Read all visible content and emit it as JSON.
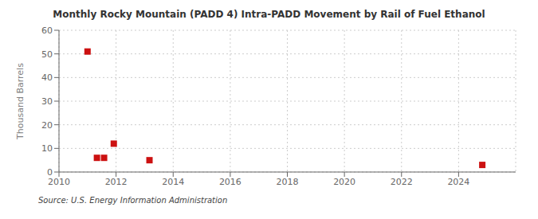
{
  "chart_data": {
    "type": "scatter",
    "title": "Monthly Rocky Mountain (PADD 4) Intra-PADD Movement by Rail of Fuel Ethanol",
    "ylabel": "Thousand Barrels",
    "annotation": "Source: U.S. Energy Information Administration",
    "x": [
      2011.0,
      2011.33,
      2011.58,
      2011.92,
      2013.17,
      2024.83
    ],
    "values": [
      51.0,
      6.0,
      6.0,
      12.0,
      5.0,
      3.0
    ],
    "color": "#cc1111",
    "marker": "square",
    "xlim": [
      2010,
      2026
    ],
    "ylim": [
      0,
      60
    ],
    "xticks": [
      2010,
      2012,
      2014,
      2016,
      2018,
      2020,
      2022,
      2024
    ],
    "yticks": [
      0,
      10,
      20,
      30,
      40,
      50,
      60
    ],
    "grid": true
  }
}
